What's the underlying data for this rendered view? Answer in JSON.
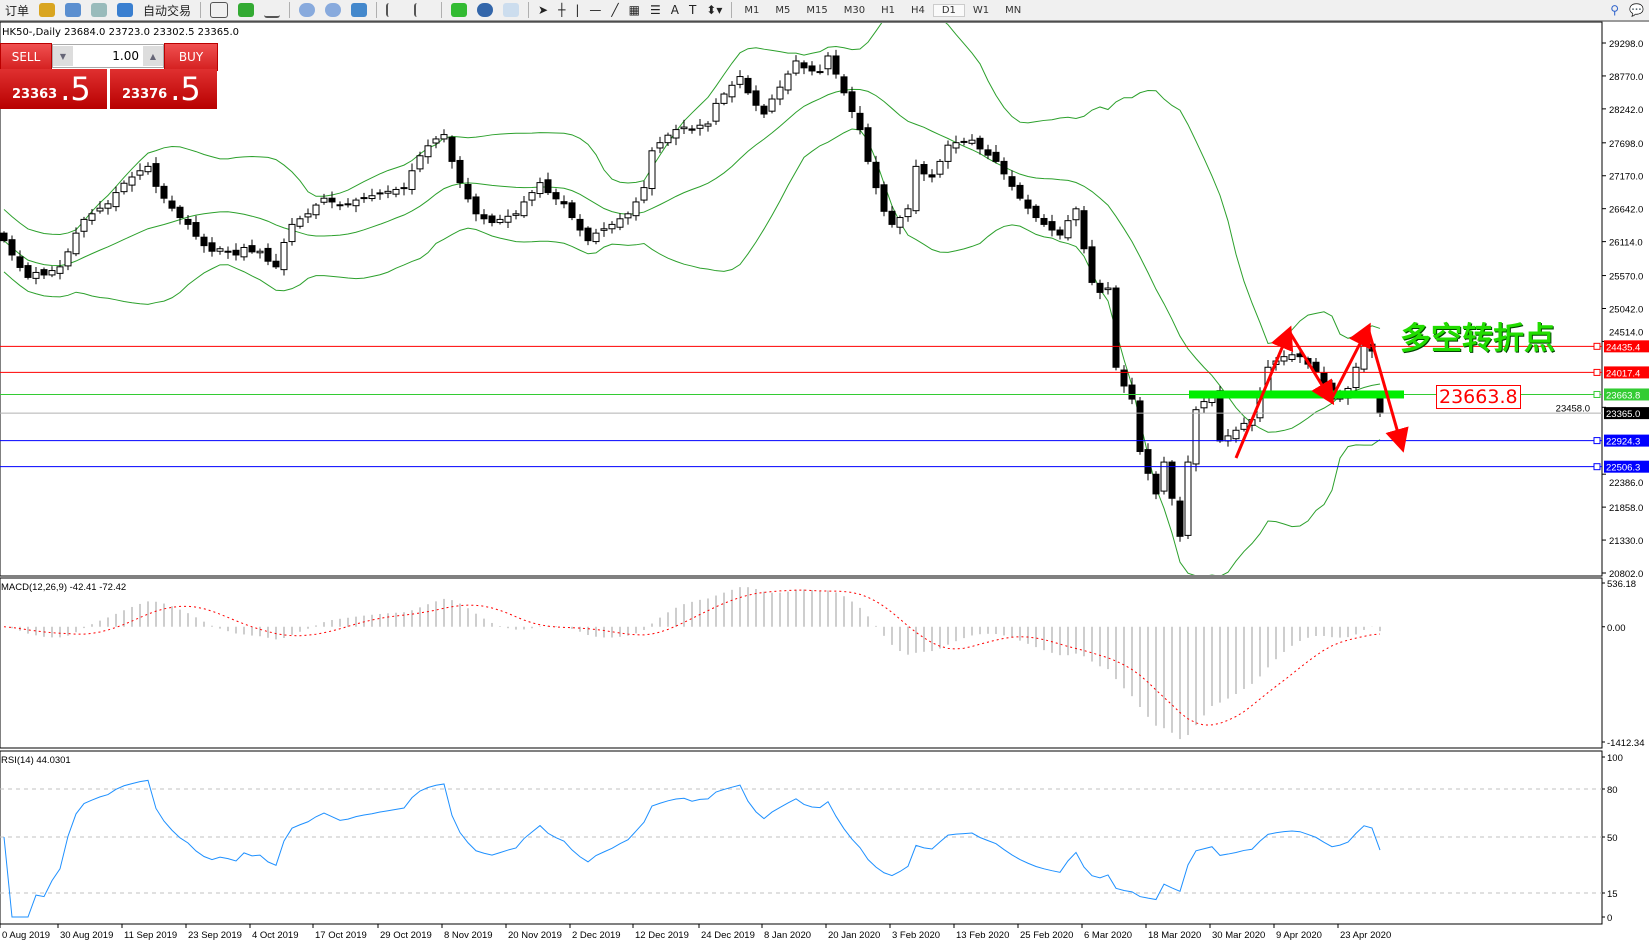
{
  "toolbar": {
    "left_label": "订单",
    "auto_trade_label": "自动交易",
    "timeframes": [
      "M1",
      "M5",
      "M15",
      "M30",
      "H1",
      "H4",
      "D1",
      "W1",
      "MN"
    ],
    "active_timeframe": "D1",
    "text_tool": "A",
    "label_tool": "T"
  },
  "chart_header": {
    "title": "HK50-,Daily  23684.0 23723.0 23302.5 23365.0"
  },
  "trade_panel": {
    "sell_label": "SELL",
    "buy_label": "BUY",
    "lot": "1.00",
    "sell_price_main": "23363",
    "sell_price_frac": ".5",
    "buy_price_main": "23376",
    "buy_price_frac": ".5"
  },
  "annotation": {
    "note": "多空转折点",
    "level_label": "23663.8"
  },
  "colors": {
    "bull_band": "#2ca02c",
    "resistance": "#ff0000",
    "pivot": "#33cc33",
    "support": "#0000ff",
    "rsi": "#1e90ff",
    "signal": "#ff0000"
  },
  "chart_data": {
    "type": "candlestick",
    "symbol": "HK50-",
    "period": "Daily",
    "price_ticks": [
      "29298.0",
      "28770.0",
      "28242.0",
      "27698.0",
      "27170.0",
      "26642.0",
      "26114.0",
      "25570.0",
      "25042.0",
      "24514.0",
      "23458.0",
      "22386.0",
      "21858.0",
      "21330.0",
      "20802.0"
    ],
    "ylim": [
      20802.0,
      29298.0
    ],
    "date_labels": [
      "0 Aug 2019",
      "30 Aug 2019",
      "11 Sep 2019",
      "23 Sep 2019",
      "4 Oct 2019",
      "17 Oct 2019",
      "29 Oct 2019",
      "8 Nov 2019",
      "20 Nov 2019",
      "2 Dec 2019",
      "12 Dec 2019",
      "24 Dec 2019",
      "8 Jan 2020",
      "20 Jan 2020",
      "3 Feb 2020",
      "13 Feb 2020",
      "25 Feb 2020",
      "6 Mar 2020",
      "18 Mar 2020",
      "30 Mar 2020",
      "9 Apr 2020",
      "23 Apr 2020"
    ],
    "closes": [
      26130,
      25900,
      25700,
      25540,
      25620,
      25580,
      25650,
      25710,
      25950,
      26250,
      26470,
      26560,
      26650,
      26720,
      26900,
      27050,
      27150,
      27250,
      27320,
      27000,
      26810,
      26650,
      26500,
      26390,
      26200,
      26050,
      25960,
      26000,
      25960,
      25900,
      26020,
      25950,
      25960,
      25800,
      25710,
      26100,
      26390,
      26480,
      26560,
      26700,
      26810,
      26750,
      26690,
      26720,
      26780,
      26820,
      26850,
      26890,
      26920,
      26950,
      26980,
      27250,
      27490,
      27650,
      27760,
      27830,
      27400,
      27060,
      26800,
      26560,
      26480,
      26420,
      26470,
      26520,
      26560,
      26750,
      26900,
      27060,
      26900,
      26800,
      26720,
      26500,
      26300,
      26130,
      26250,
      26320,
      26390,
      26480,
      26560,
      26750,
      26980,
      27570,
      27700,
      27820,
      27910,
      27950,
      27900,
      27980,
      28000,
      28330,
      28480,
      28620,
      28760,
      28500,
      28300,
      28160,
      28400,
      28590,
      28800,
      29010,
      28900,
      28850,
      28840,
      29090,
      28800,
      28500,
      28200,
      27910,
      27400,
      26980,
      26600,
      26390,
      26500,
      26640,
      27320,
      27200,
      27150,
      27400,
      27660,
      27700,
      27720,
      27740,
      27600,
      27500,
      27400,
      27200,
      27000,
      26810,
      26650,
      26500,
      26390,
      26300,
      26220,
      26450,
      26640,
      26000,
      25460,
      25300,
      25370,
      24100,
      23800,
      23590,
      22750,
      22400,
      22070,
      22580,
      22000,
      21390,
      22580,
      23420,
      23550,
      23680,
      22920,
      23000,
      23090,
      23200,
      23260,
      23700,
      24100,
      24200,
      24270,
      24300,
      24270,
      24150,
      24020,
      23800,
      23590,
      23650,
      23760,
      24100,
      24440,
      24360,
      23365
    ],
    "last_bar": {
      "open": 23684.0,
      "high": 23723.0,
      "low": 23302.5,
      "close": 23365.0
    },
    "bollinger": {
      "period": 20,
      "deviation": 2
    },
    "horizontal_lines": [
      {
        "price": "24435.4",
        "color": "#ff0000"
      },
      {
        "price": "24017.4",
        "color": "#ff0000"
      },
      {
        "price": "23663.8",
        "color": "#33cc33"
      },
      {
        "price": "23365.0",
        "color": "#000000"
      },
      {
        "price": "22924.3",
        "color": "#0000ff"
      },
      {
        "price": "22506.3",
        "color": "#0000ff"
      }
    ],
    "macd": {
      "label": "MACD(12,26,9) -42.41 -72.42",
      "ticks": [
        "536.18",
        "0.00",
        "-1412.34"
      ],
      "ylim": [
        -1412.34,
        536.18
      ]
    },
    "rsi": {
      "label": "RSI(14) 44.0301",
      "ticks": [
        "100",
        "80",
        "50",
        "15",
        "0"
      ],
      "levels": [
        80,
        50,
        15
      ],
      "ylim": [
        0,
        100
      ]
    }
  }
}
